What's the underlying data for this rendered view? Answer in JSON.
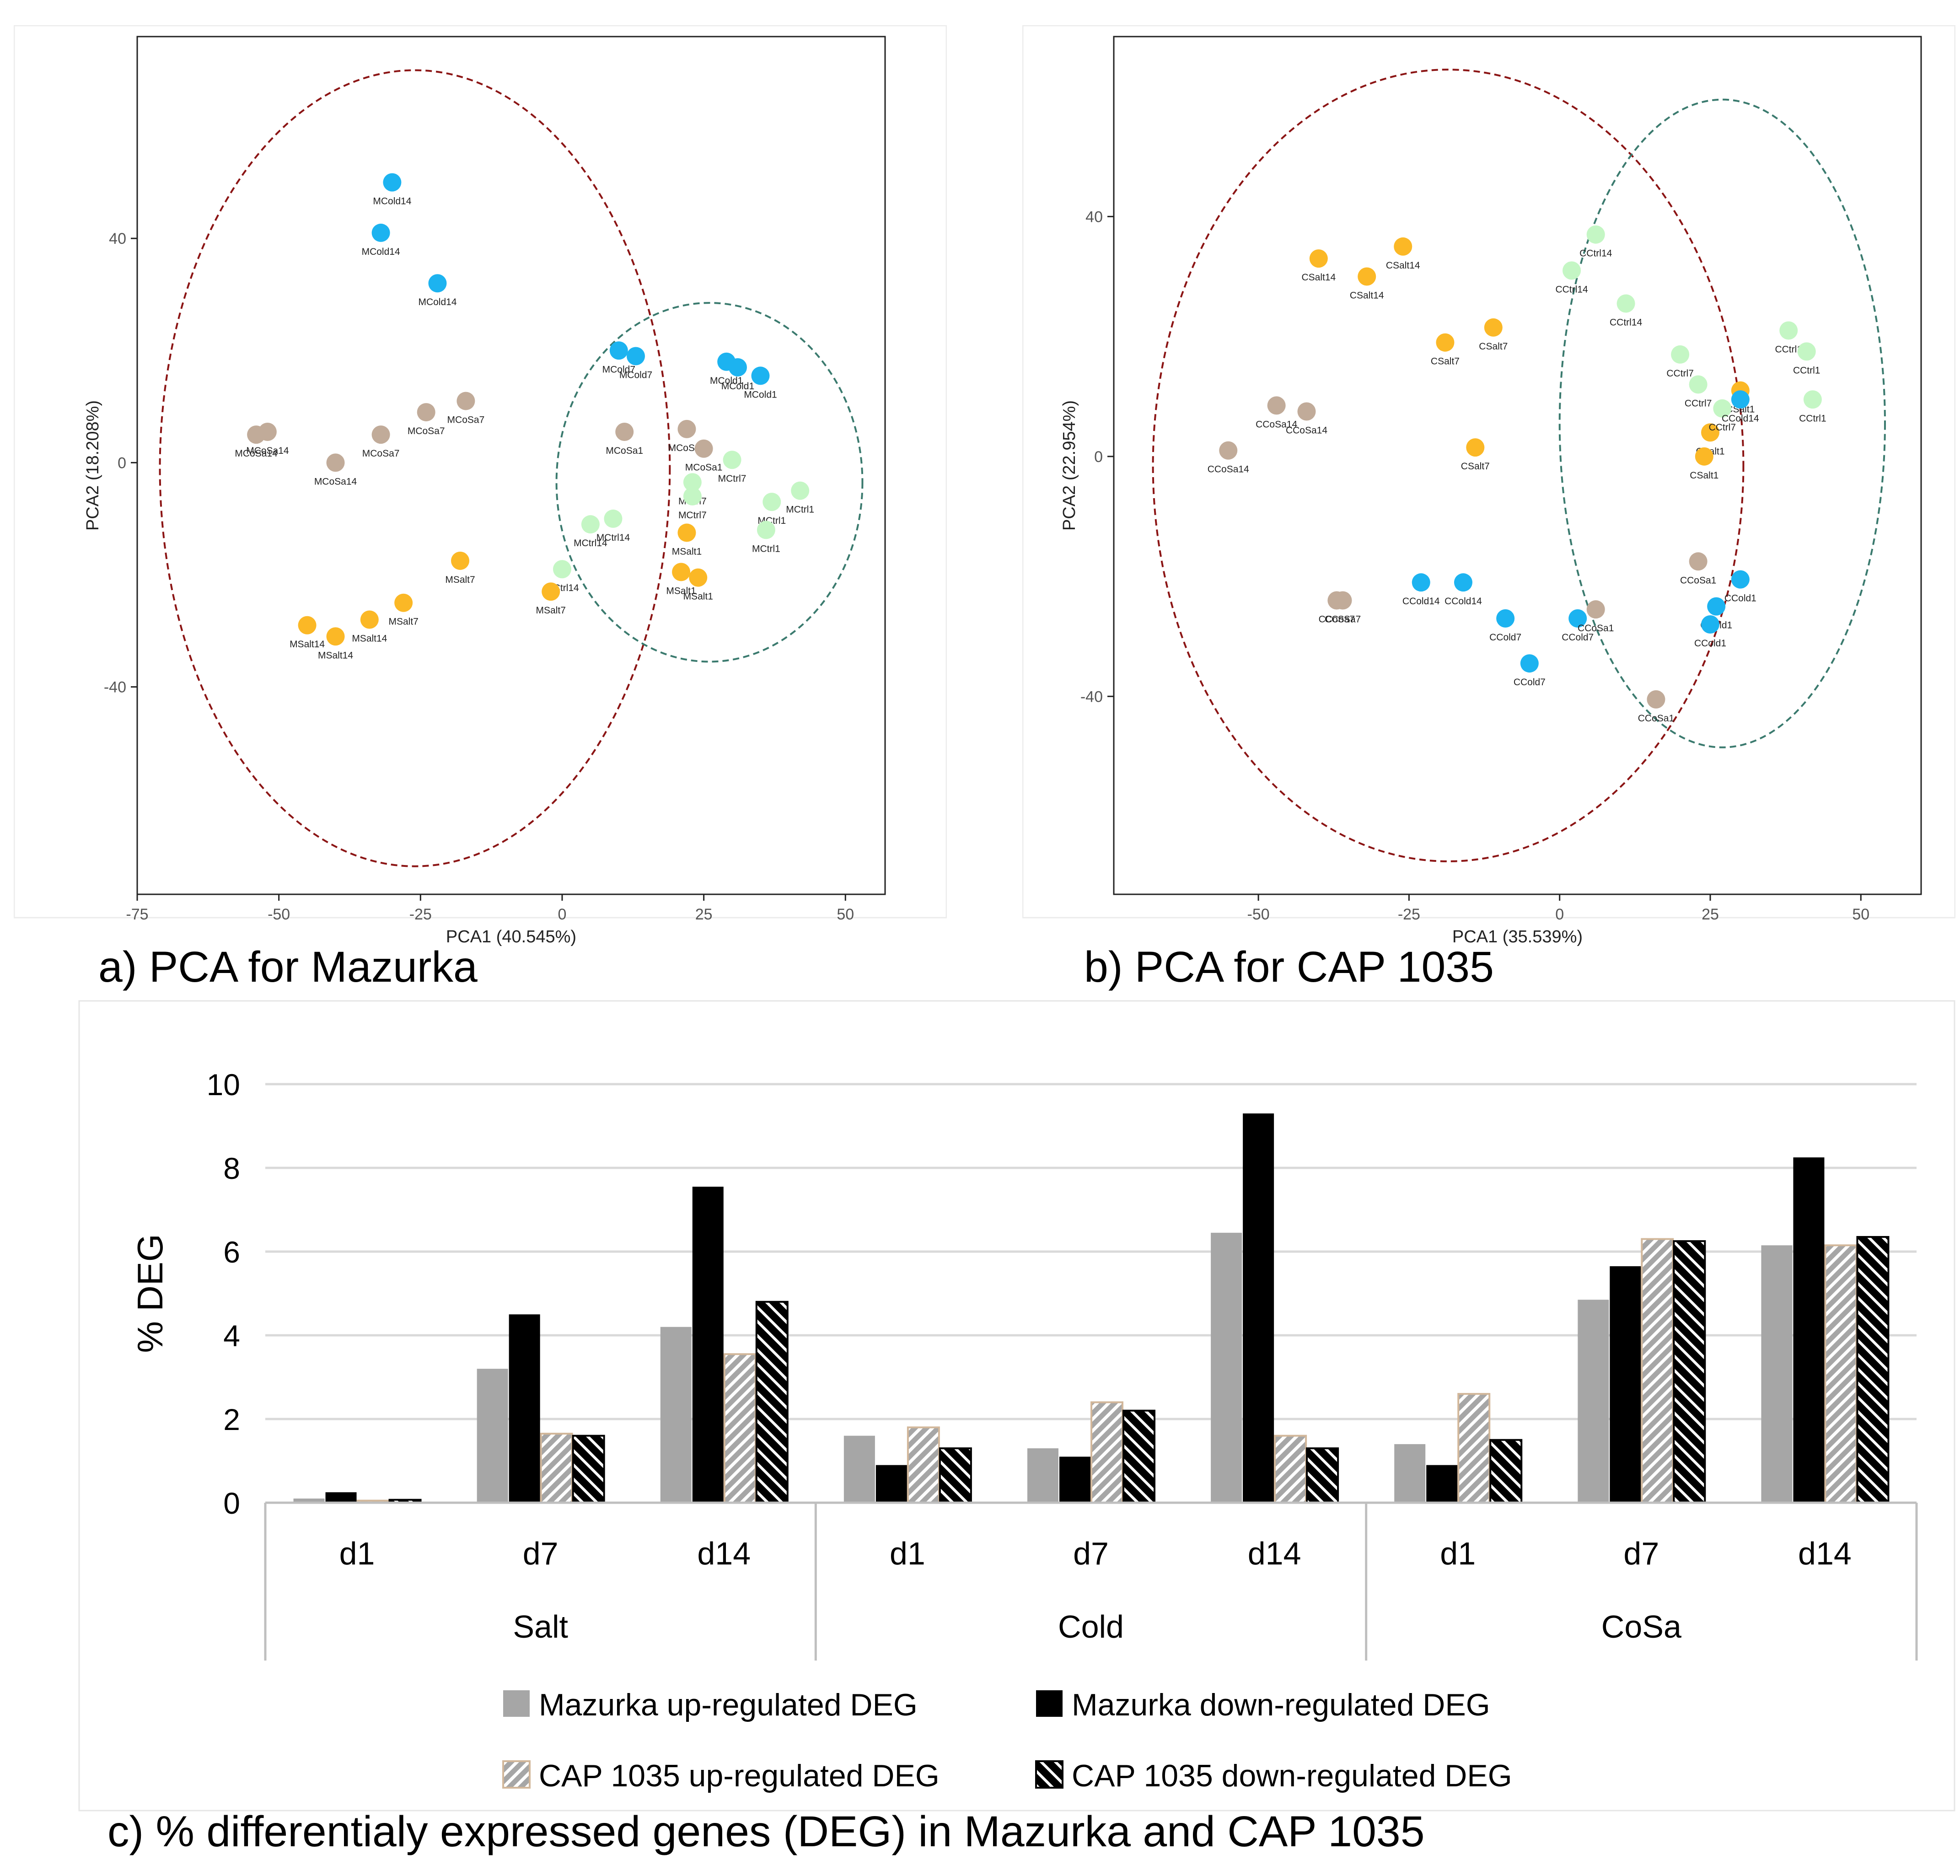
{
  "captions": {
    "a": "a) PCA for Mazurka",
    "b": "b) PCA for CAP 1035",
    "c": "c) % differentialy expressed genes (DEG) in Mazurka and CAP 1035"
  },
  "colors": {
    "cold": "#1cb3f0",
    "salt": "#fbb826",
    "cosa": "#c1ab99",
    "ctrl": "#c4f6c4",
    "ellipse_red": "#8b1414",
    "ellipse_teal": "#3a7a6e",
    "bar_mazurka_up": "#a6a6a6",
    "bar_mazurka_down": "#000000",
    "bar_cap_up_fill": "#a6a6a6",
    "bar_cap_up_border": "#d2b79a",
    "bar_cap_down": "#000000"
  },
  "chart_data": [
    {
      "id": "pca_mazurka",
      "type": "scatter",
      "title": "a) PCA for Mazurka",
      "xlabel": "PCA1 (40.545%)",
      "ylabel": "PCA2 (18.208%)",
      "xlim": [
        -75,
        57
      ],
      "ylim": [
        -77,
        76
      ],
      "xticks": [
        -75,
        -50,
        -25,
        0,
        25,
        50
      ],
      "yticks": [
        -40,
        0,
        40
      ],
      "grid": false,
      "ellipses": [
        {
          "color": "red",
          "cx": -26,
          "cy": -1,
          "rx": 45,
          "ry": 71
        },
        {
          "color": "teal",
          "cx": 26,
          "cy": -3.5,
          "rx": 27,
          "ry": 32
        }
      ],
      "points": [
        {
          "label": "MCold14",
          "group": "cold",
          "x": -30,
          "y": 50
        },
        {
          "label": "MCold14",
          "group": "cold",
          "x": -32,
          "y": 41
        },
        {
          "label": "MCold14",
          "group": "cold",
          "x": -22,
          "y": 32
        },
        {
          "label": "MCold7",
          "group": "cold",
          "x": 10,
          "y": 20
        },
        {
          "label": "MCold7",
          "group": "cold",
          "x": 13,
          "y": 19
        },
        {
          "label": "MCold1",
          "group": "cold",
          "x": 29,
          "y": 18
        },
        {
          "label": "MCold1",
          "group": "cold",
          "x": 31,
          "y": 17
        },
        {
          "label": "MCold1",
          "group": "cold",
          "x": 35,
          "y": 15.5
        },
        {
          "label": "MCoSa7",
          "group": "cosa",
          "x": -17,
          "y": 11
        },
        {
          "label": "MCoSa7",
          "group": "cosa",
          "x": -24,
          "y": 9
        },
        {
          "label": "MCoSa7",
          "group": "cosa",
          "x": -32,
          "y": 5
        },
        {
          "label": "MCoSa14",
          "group": "cosa",
          "x": -52,
          "y": 5.5
        },
        {
          "label": "MCoSa14",
          "group": "cosa",
          "x": -54,
          "y": 5
        },
        {
          "label": "MCoSa14",
          "group": "cosa",
          "x": -40,
          "y": 0
        },
        {
          "label": "MCoSa1",
          "group": "cosa",
          "x": 22,
          "y": 6
        },
        {
          "label": "MCoSa1",
          "group": "cosa",
          "x": 11,
          "y": 5.5
        },
        {
          "label": "MCoSa1",
          "group": "cosa",
          "x": 25,
          "y": 2.5
        },
        {
          "label": "MCtrl7",
          "group": "ctrl",
          "x": 30,
          "y": 0.5
        },
        {
          "label": "MCtrl7",
          "group": "ctrl",
          "x": 23,
          "y": -3.5
        },
        {
          "label": "MCtrl7",
          "group": "ctrl",
          "x": 23,
          "y": -6
        },
        {
          "label": "MCtrl1",
          "group": "ctrl",
          "x": 42,
          "y": -5
        },
        {
          "label": "MCtrl1",
          "group": "ctrl",
          "x": 37,
          "y": -7
        },
        {
          "label": "MCtrl1",
          "group": "ctrl",
          "x": 36,
          "y": -12
        },
        {
          "label": "MCtrl14",
          "group": "ctrl",
          "x": 9,
          "y": -10
        },
        {
          "label": "MCtrl14",
          "group": "ctrl",
          "x": 5,
          "y": -11
        },
        {
          "label": "MCtrl14",
          "group": "ctrl",
          "x": 0,
          "y": -19
        },
        {
          "label": "MSalt1",
          "group": "salt",
          "x": 22,
          "y": -12.5
        },
        {
          "label": "MSalt1",
          "group": "salt",
          "x": 21,
          "y": -19.5
        },
        {
          "label": "MSalt1",
          "group": "salt",
          "x": 24,
          "y": -20.5
        },
        {
          "label": "MSalt7",
          "group": "salt",
          "x": -18,
          "y": -17.5
        },
        {
          "label": "MSalt7",
          "group": "salt",
          "x": -2,
          "y": -23
        },
        {
          "label": "MSalt7",
          "group": "salt",
          "x": -28,
          "y": -25
        },
        {
          "label": "MSalt14",
          "group": "salt",
          "x": -45,
          "y": -29
        },
        {
          "label": "MSalt14",
          "group": "salt",
          "x": -34,
          "y": -28
        },
        {
          "label": "MSalt14",
          "group": "salt",
          "x": -40,
          "y": -31
        }
      ]
    },
    {
      "id": "pca_cap1035",
      "type": "scatter",
      "title": "b) PCA for CAP 1035",
      "xlabel": "PCA1 (35.539%)",
      "ylabel": "PCA2 (22.954%)",
      "xlim": [
        -74,
        60
      ],
      "ylim": [
        -73,
        70
      ],
      "xticks": [
        -50,
        -25,
        0,
        25,
        50
      ],
      "yticks": [
        -40,
        0,
        40
      ],
      "grid": false,
      "ellipses": [
        {
          "color": "red",
          "cx": -18.5,
          "cy": -1.5,
          "rx": 49,
          "ry": 66
        },
        {
          "color": "teal",
          "cx": 27,
          "cy": 5.5,
          "rx": 27,
          "ry": 54
        }
      ],
      "points": [
        {
          "label": "CSalt14",
          "group": "salt",
          "x": -40,
          "y": 33
        },
        {
          "label": "CSalt14",
          "group": "salt",
          "x": -32,
          "y": 30
        },
        {
          "label": "CSalt14",
          "group": "salt",
          "x": -26,
          "y": 35
        },
        {
          "label": "CSalt7",
          "group": "salt",
          "x": -19,
          "y": 19
        },
        {
          "label": "CSalt7",
          "group": "salt",
          "x": -11,
          "y": 21.5
        },
        {
          "label": "CSalt7",
          "group": "salt",
          "x": -14,
          "y": 1.5
        },
        {
          "label": "CSalt1",
          "group": "salt",
          "x": 30,
          "y": 11
        },
        {
          "label": "CSalt1",
          "group": "salt",
          "x": 25,
          "y": 4
        },
        {
          "label": "CSalt1",
          "group": "salt",
          "x": 24,
          "y": 0
        },
        {
          "label": "CCtrl14",
          "group": "ctrl",
          "x": 6,
          "y": 37
        },
        {
          "label": "CCtrl14",
          "group": "ctrl",
          "x": 2,
          "y": 31
        },
        {
          "label": "CCtrl14",
          "group": "ctrl",
          "x": 11,
          "y": 25.5
        },
        {
          "label": "CCtrl7",
          "group": "ctrl",
          "x": 20,
          "y": 17
        },
        {
          "label": "CCtrl7",
          "group": "ctrl",
          "x": 23,
          "y": 12
        },
        {
          "label": "CCtrl7",
          "group": "ctrl",
          "x": 27,
          "y": 8
        },
        {
          "label": "CCtrl1",
          "group": "ctrl",
          "x": 38,
          "y": 21
        },
        {
          "label": "CCtrl1",
          "group": "ctrl",
          "x": 41,
          "y": 17.5
        },
        {
          "label": "CCtrl1",
          "group": "ctrl",
          "x": 42,
          "y": 9.5
        },
        {
          "label": "CCold14",
          "group": "cold",
          "x": 30,
          "y": 9.5
        },
        {
          "label": "CCold14",
          "group": "cold",
          "x": -23,
          "y": -21
        },
        {
          "label": "CCold14",
          "group": "cold",
          "x": -16,
          "y": -21
        },
        {
          "label": "CCold7",
          "group": "cold",
          "x": -9,
          "y": -27
        },
        {
          "label": "CCold7",
          "group": "cold",
          "x": 3,
          "y": -27
        },
        {
          "label": "CCold7",
          "group": "cold",
          "x": -5,
          "y": -34.5
        },
        {
          "label": "CCold1",
          "group": "cold",
          "x": 30,
          "y": -20.5
        },
        {
          "label": "CCold1",
          "group": "cold",
          "x": 26,
          "y": -25
        },
        {
          "label": "CCold1",
          "group": "cold",
          "x": 25,
          "y": -28
        },
        {
          "label": "CCoSa14",
          "group": "cosa",
          "x": -47,
          "y": 8.5
        },
        {
          "label": "CCoSa14",
          "group": "cosa",
          "x": -42,
          "y": 7.5
        },
        {
          "label": "CCoSa14",
          "group": "cosa",
          "x": -55,
          "y": 1
        },
        {
          "label": "CCoSa7",
          "group": "cosa",
          "x": -37,
          "y": -24
        },
        {
          "label": "CCoSa7",
          "group": "cosa",
          "x": -36,
          "y": -24
        },
        {
          "label": "CCoSa1",
          "group": "cosa",
          "x": 6,
          "y": -25.5
        },
        {
          "label": "CCoSa1",
          "group": "cosa",
          "x": 23,
          "y": -17.5
        },
        {
          "label": "CCoSa1",
          "group": "cosa",
          "x": 16,
          "y": -40.5
        }
      ]
    },
    {
      "id": "deg_bars",
      "type": "bar",
      "title": "c) % differentialy expressed genes (DEG) in Mazurka and CAP 1035",
      "ylabel": "% DEG",
      "ylim": [
        0,
        10
      ],
      "yticks": [
        0,
        2,
        4,
        6,
        8,
        10
      ],
      "grid": true,
      "legend_position": "bottom",
      "groups": [
        {
          "name": "Salt",
          "categories": [
            "d1",
            "d7",
            "d14"
          ]
        },
        {
          "name": "Cold",
          "categories": [
            "d1",
            "d7",
            "d14"
          ]
        },
        {
          "name": "CoSa",
          "categories": [
            "d1",
            "d7",
            "d14"
          ]
        }
      ],
      "series": [
        {
          "name": "Mazurka up-regulated DEG",
          "style": "mazurka_up",
          "values": [
            0.1,
            3.2,
            4.2,
            1.6,
            1.3,
            6.45,
            1.4,
            4.85,
            6.15
          ]
        },
        {
          "name": "Mazurka down-regulated DEG",
          "style": "mazurka_down",
          "values": [
            0.25,
            4.5,
            7.55,
            0.9,
            1.1,
            9.3,
            0.9,
            5.65,
            8.25
          ]
        },
        {
          "name": "CAP 1035 up-regulated DEG",
          "style": "cap_up",
          "values": [
            0.05,
            1.65,
            3.55,
            1.8,
            2.4,
            1.6,
            2.6,
            6.3,
            6.15
          ]
        },
        {
          "name": "CAP 1035 down-regulated DEG",
          "style": "cap_down",
          "values": [
            0.07,
            1.6,
            4.8,
            1.3,
            2.2,
            1.3,
            1.5,
            6.25,
            6.35
          ]
        }
      ]
    }
  ]
}
